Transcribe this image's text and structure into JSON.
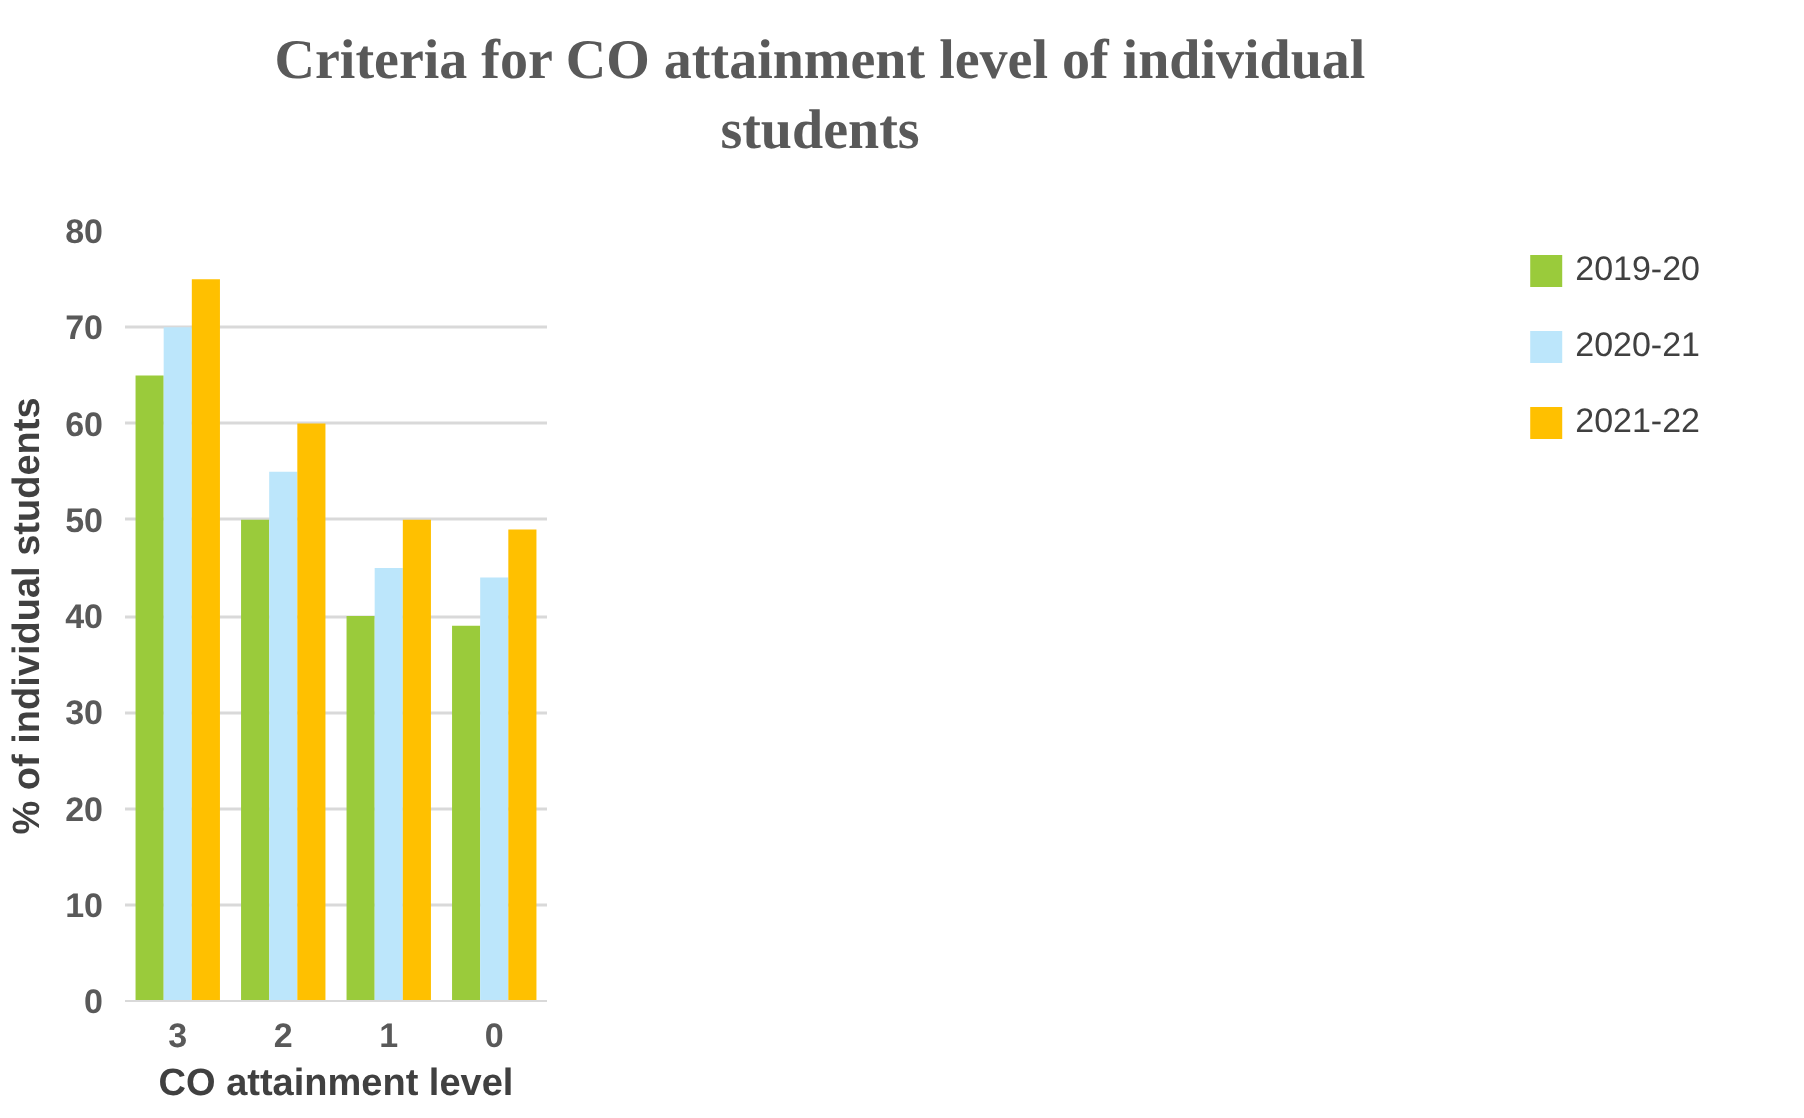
{
  "chart_data": {
    "type": "bar",
    "title": "Criteria for CO attainment level of individual students",
    "xlabel": "CO attainment level",
    "ylabel": "% of individual students",
    "categories": [
      "3",
      "2",
      "1",
      "0"
    ],
    "series": [
      {
        "name": "2019-20",
        "color": "#9acb3b",
        "values": [
          65,
          50,
          40,
          39
        ]
      },
      {
        "name": "2020-21",
        "color": "#bce6fb",
        "values": [
          70,
          55,
          45,
          44
        ]
      },
      {
        "name": "2021-22",
        "color": "#ffc000",
        "values": [
          75,
          60,
          50,
          49
        ]
      }
    ],
    "ylim": [
      0,
      80
    ],
    "yticks": [
      0,
      10,
      20,
      30,
      40,
      50,
      60,
      70,
      80
    ],
    "grid": "y",
    "legend": "right"
  }
}
